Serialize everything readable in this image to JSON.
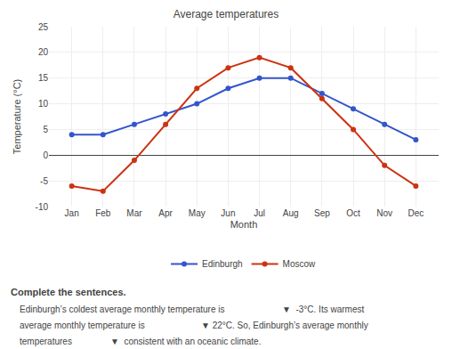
{
  "chart_data": {
    "type": "line",
    "title": "Average temperatures",
    "xlabel": "Month",
    "ylabel": "Temperature (°C)",
    "categories": [
      "Jan",
      "Feb",
      "Mar",
      "Apr",
      "May",
      "Jun",
      "Jul",
      "Aug",
      "Sep",
      "Oct",
      "Nov",
      "Dec"
    ],
    "series": [
      {
        "name": "Edinburgh",
        "color": "#3355cc",
        "values": [
          4,
          4,
          6,
          8,
          10,
          13,
          15,
          15,
          12,
          9,
          6,
          3
        ]
      },
      {
        "name": "Moscow",
        "color": "#cc3311",
        "values": [
          -6,
          -7,
          -1,
          6,
          13,
          17,
          19,
          17,
          11,
          5,
          -2,
          -6
        ]
      }
    ],
    "ylim": [
      -10,
      25
    ],
    "yticks": [
      -10,
      -5,
      0,
      5,
      10,
      15,
      20,
      25
    ],
    "grid": true,
    "legend": "bottom",
    "marker": "circle",
    "annotations": [
      "Complete the sentences.",
      "Edinburgh’s coldest average monthly temperature is",
      "▼  -3°C. Its warmest",
      "average monthly temperature is",
      "▼ 22°C. So, Edinburgh’s average monthly",
      "temperatures",
      "▼  consistent with an oceanic climate."
    ]
  }
}
